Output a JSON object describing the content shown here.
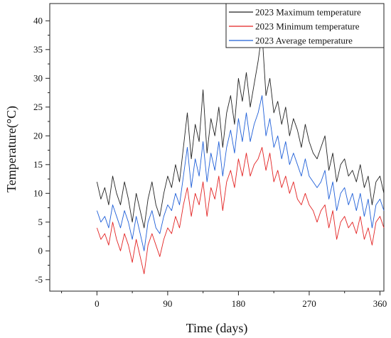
{
  "chart_data": {
    "type": "line",
    "title": "",
    "xlabel": "Time (days)",
    "ylabel": "Temperature(°C)",
    "xlim": [
      -60,
      365
    ],
    "ylim": [
      -7,
      43
    ],
    "xticks": [
      0,
      90,
      180,
      270,
      360
    ],
    "xtick_labels": [
      "0",
      "90",
      "180",
      "270",
      "360"
    ],
    "yticks": [
      -5,
      0,
      5,
      10,
      15,
      20,
      25,
      30,
      35,
      40
    ],
    "ytick_labels": [
      "-5",
      "0",
      "5",
      "10",
      "15",
      "20",
      "25",
      "30",
      "35",
      "40"
    ],
    "grid": false,
    "legend_position": "top-right",
    "x": [
      0,
      5,
      10,
      15,
      20,
      25,
      30,
      35,
      40,
      45,
      50,
      55,
      60,
      65,
      70,
      75,
      80,
      85,
      90,
      95,
      100,
      105,
      110,
      115,
      120,
      125,
      130,
      135,
      140,
      145,
      150,
      155,
      160,
      165,
      170,
      175,
      180,
      185,
      190,
      195,
      200,
      205,
      210,
      215,
      220,
      225,
      230,
      235,
      240,
      245,
      250,
      255,
      260,
      265,
      270,
      275,
      280,
      285,
      290,
      295,
      300,
      305,
      310,
      315,
      320,
      325,
      330,
      335,
      340,
      345,
      350,
      355,
      360,
      365
    ],
    "series": [
      {
        "name": "2023 Maximum temperature",
        "color": "#222222",
        "values": [
          12,
          9,
          11,
          8,
          13,
          10,
          8,
          12,
          9,
          5,
          10,
          7,
          4,
          9,
          12,
          8,
          6,
          10,
          13,
          11,
          15,
          12,
          18,
          24,
          16,
          22,
          19,
          28,
          17,
          23,
          20,
          25,
          18,
          24,
          27,
          22,
          30,
          26,
          31,
          25,
          29,
          33,
          38,
          27,
          30,
          24,
          26,
          22,
          25,
          20,
          23,
          21,
          18,
          22,
          19,
          17,
          16,
          18,
          20,
          14,
          17,
          12,
          15,
          16,
          13,
          14,
          12,
          15,
          11,
          13,
          8,
          12,
          13,
          10
        ]
      },
      {
        "name": "2023 Minimum temperature",
        "color": "#e32222",
        "values": [
          4,
          2,
          3,
          1,
          5,
          2,
          0,
          3,
          1,
          -2,
          2,
          -1,
          -4,
          1,
          3,
          1,
          -1,
          2,
          4,
          3,
          6,
          4,
          8,
          11,
          6,
          10,
          8,
          12,
          6,
          11,
          9,
          13,
          7,
          12,
          14,
          11,
          16,
          13,
          17,
          13,
          15,
          16,
          18,
          14,
          17,
          12,
          14,
          11,
          13,
          10,
          12,
          9,
          8,
          10,
          8,
          7,
          5,
          7,
          8,
          4,
          7,
          2,
          5,
          6,
          4,
          5,
          3,
          6,
          2,
          4,
          1,
          5,
          6,
          4
        ]
      },
      {
        "name": "2023 Average temperature",
        "color": "#1f5fd8",
        "values": [
          7,
          5,
          6,
          4,
          8,
          6,
          4,
          7,
          5,
          2,
          6,
          3,
          0,
          5,
          7,
          4,
          3,
          6,
          8,
          7,
          10,
          8,
          13,
          18,
          11,
          16,
          13,
          19,
          12,
          17,
          14,
          19,
          13,
          18,
          21,
          17,
          23,
          19,
          24,
          19,
          22,
          24,
          27,
          20,
          23,
          18,
          20,
          16,
          19,
          15,
          17,
          15,
          13,
          16,
          13,
          12,
          11,
          12,
          14,
          9,
          12,
          7,
          10,
          11,
          8,
          10,
          7,
          10,
          6,
          9,
          4,
          8,
          9,
          7
        ]
      }
    ]
  }
}
